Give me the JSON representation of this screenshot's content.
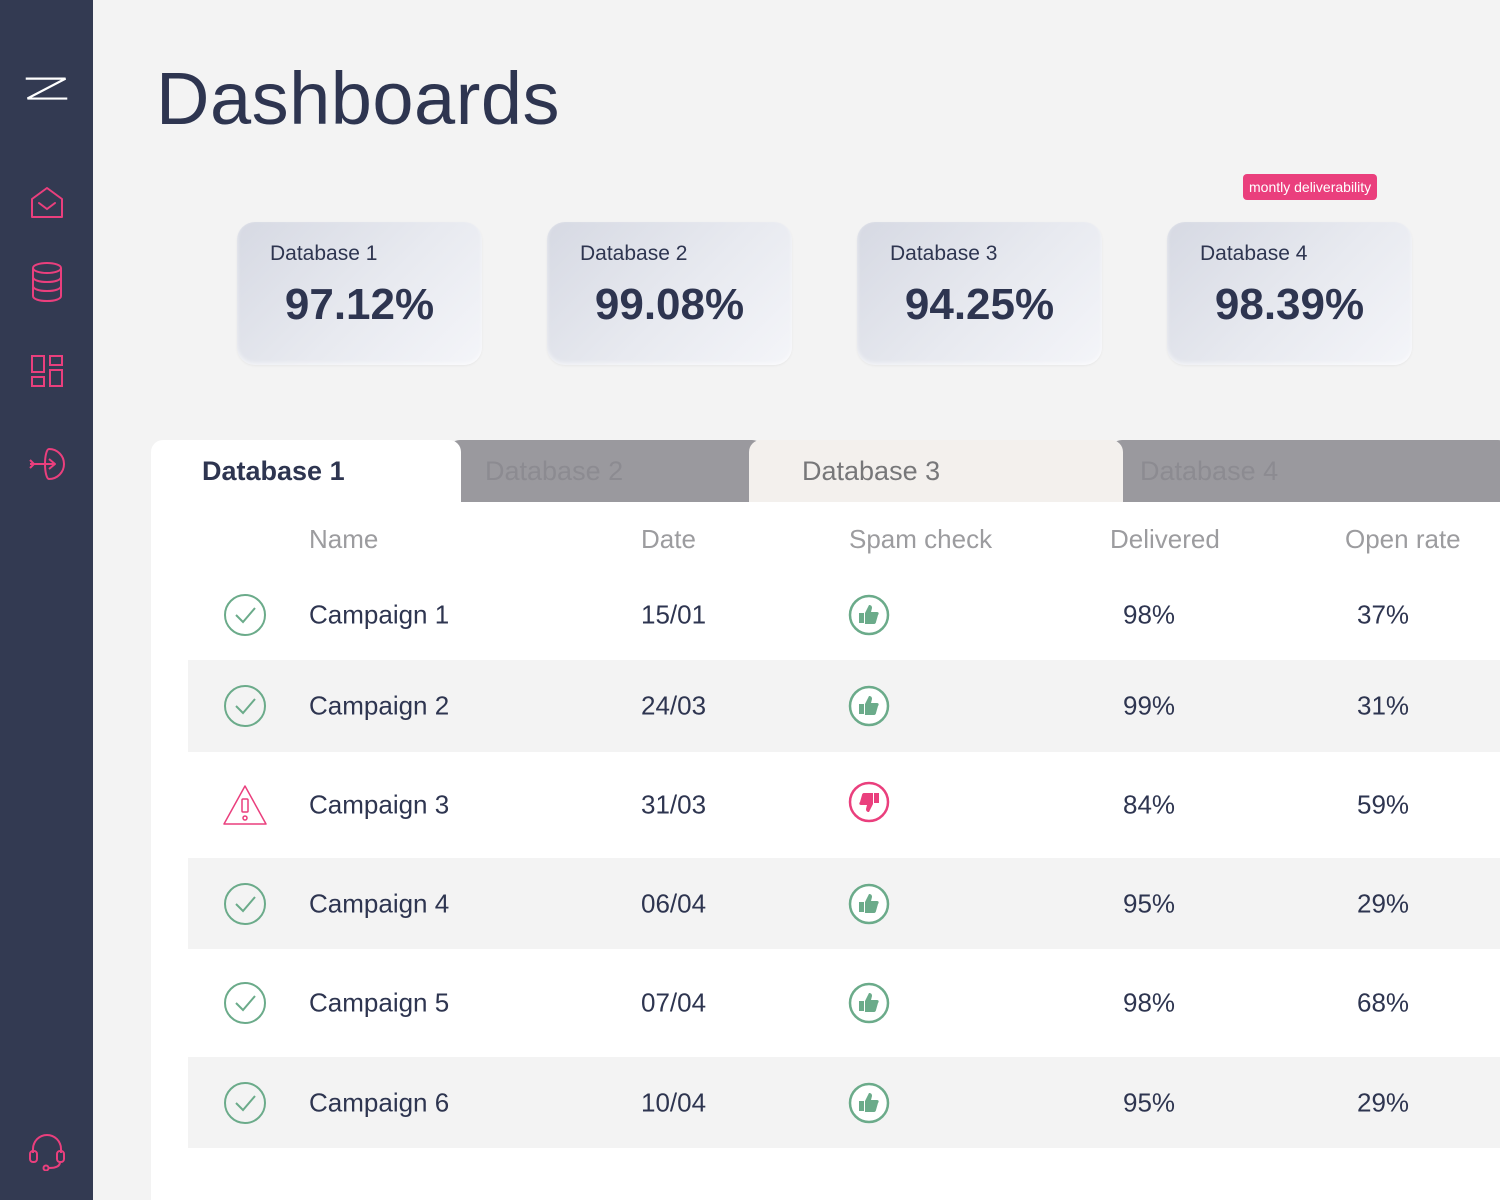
{
  "app": {
    "title": "Dashboards",
    "colors": {
      "sidebar": "#333a52",
      "accent": "#ea3f7d",
      "success": "#6bab8a",
      "text": "#2e3550"
    }
  },
  "sidebar": {
    "items": [
      {
        "name": "logo",
        "icon": "logo-z-icon"
      },
      {
        "name": "inbox",
        "icon": "mail-open-icon"
      },
      {
        "name": "databases",
        "icon": "database-icon"
      },
      {
        "name": "dashboards",
        "icon": "dashboard-grid-icon"
      },
      {
        "name": "integrations",
        "icon": "target-arrow-icon"
      },
      {
        "name": "support",
        "icon": "headset-icon"
      }
    ]
  },
  "badge": {
    "label": "montly deliverability"
  },
  "cards": [
    {
      "label": "Database 1",
      "value": "97.12%"
    },
    {
      "label": "Database 2",
      "value": "99.08%"
    },
    {
      "label": "Database 3",
      "value": "94.25%"
    },
    {
      "label": "Database 4",
      "value": "98.39%"
    }
  ],
  "tabs": [
    {
      "label": "Database 1",
      "active": true
    },
    {
      "label": "Database 2",
      "active": false
    },
    {
      "label": "Database 3",
      "active": false
    },
    {
      "label": "Database 4",
      "active": false
    }
  ],
  "table": {
    "headers": {
      "name": "Name",
      "date": "Date",
      "spam": "Spam check",
      "delivered": "Delivered",
      "open": "Open rate"
    },
    "rows": [
      {
        "status": "check-circle-icon",
        "name": "Campaign 1",
        "date": "15/01",
        "spam": "thumbs-up-icon",
        "delivered": "98%",
        "open": "37%"
      },
      {
        "status": "check-circle-icon",
        "name": "Campaign 2",
        "date": "24/03",
        "spam": "thumbs-up-icon",
        "delivered": "99%",
        "open": "31%"
      },
      {
        "status": "warning-triangle-icon",
        "name": "Campaign 3",
        "date": "31/03",
        "spam": "thumbs-down-icon",
        "delivered": "84%",
        "open": "59%"
      },
      {
        "status": "check-circle-icon",
        "name": "Campaign 4",
        "date": "06/04",
        "spam": "thumbs-up-icon",
        "delivered": "95%",
        "open": "29%"
      },
      {
        "status": "check-circle-icon",
        "name": "Campaign 5",
        "date": "07/04",
        "spam": "thumbs-up-icon",
        "delivered": "98%",
        "open": "68%"
      },
      {
        "status": "check-circle-icon",
        "name": "Campaign 6",
        "date": "10/04",
        "spam": "thumbs-up-icon",
        "delivered": "95%",
        "open": "29%"
      }
    ]
  }
}
